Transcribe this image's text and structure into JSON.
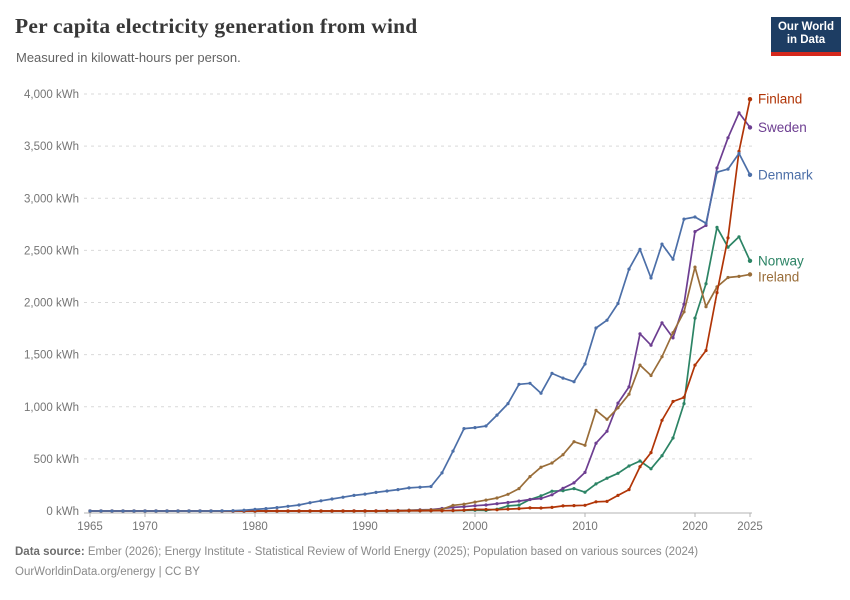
{
  "header": {
    "title": "Per capita electricity generation from wind",
    "subtitle": "Measured in kilowatt-hours per person."
  },
  "logo": {
    "line1": "Our World",
    "line2": "in Data",
    "bg_color": "#1d3d63",
    "accent_color": "#d5281c"
  },
  "chart_data": {
    "type": "line",
    "title": "Per capita electricity generation from wind",
    "unit": "kWh",
    "grid": "horizontal-dashed",
    "legend_position": "right-end-labels",
    "xlim": [
      1965,
      2025
    ],
    "ylim": [
      0,
      4000
    ],
    "x_ticks": [
      1965,
      1970,
      1980,
      1990,
      2000,
      2010,
      2020,
      2025
    ],
    "y_ticks": [
      {
        "value": 0,
        "label": "0 kWh"
      },
      {
        "value": 500,
        "label": "500 kWh"
      },
      {
        "value": 1000,
        "label": "1,000 kWh"
      },
      {
        "value": 1500,
        "label": "1,500 kWh"
      },
      {
        "value": 2000,
        "label": "2,000 kWh"
      },
      {
        "value": 2500,
        "label": "2,500 kWh"
      },
      {
        "value": 3000,
        "label": "3,000 kWh"
      },
      {
        "value": 3500,
        "label": "3,500 kWh"
      },
      {
        "value": 4000,
        "label": "4,000 kWh"
      }
    ],
    "x": [
      1965,
      1966,
      1967,
      1968,
      1969,
      1970,
      1971,
      1972,
      1973,
      1974,
      1975,
      1976,
      1977,
      1978,
      1979,
      1980,
      1981,
      1982,
      1983,
      1984,
      1985,
      1986,
      1987,
      1988,
      1989,
      1990,
      1991,
      1992,
      1993,
      1994,
      1995,
      1996,
      1997,
      1998,
      1999,
      2000,
      2001,
      2002,
      2003,
      2004,
      2005,
      2006,
      2007,
      2008,
      2009,
      2010,
      2011,
      2012,
      2013,
      2014,
      2015,
      2016,
      2017,
      2018,
      2019,
      2020,
      2021,
      2022,
      2023,
      2024,
      2025
    ],
    "series": [
      {
        "name": "Norway",
        "color": "#2C8465",
        "values": [
          0,
          0,
          0,
          0,
          0,
          0,
          0,
          0,
          0,
          0,
          0,
          0,
          0,
          0,
          0,
          0,
          0,
          0,
          0,
          0,
          0,
          0,
          0,
          0,
          0,
          0,
          0,
          0,
          1,
          2,
          2,
          2,
          3,
          4,
          6,
          7,
          6,
          17,
          49,
          57,
          110,
          145,
          190,
          195,
          215,
          180,
          260,
          315,
          362,
          432,
          480,
          405,
          530,
          700,
          1030,
          1850,
          2180,
          2720,
          2530,
          2630,
          2400
        ]
      },
      {
        "name": "Sweden",
        "color": "#6D3E91",
        "values": [
          0,
          0,
          0,
          0,
          0,
          0,
          0,
          0,
          0,
          0,
          0,
          0,
          0,
          0,
          0,
          0,
          0,
          0,
          0,
          0,
          0,
          0,
          0,
          0,
          1,
          1,
          2,
          3,
          5,
          8,
          11,
          13,
          24,
          35,
          41,
          51,
          58,
          70,
          82,
          95,
          110,
          120,
          155,
          218,
          270,
          370,
          650,
          765,
          1035,
          1190,
          1700,
          1590,
          1805,
          1660,
          1985,
          2680,
          2740,
          3290,
          3580,
          3820,
          3680
        ]
      },
      {
        "name": "Ireland",
        "color": "#996D39",
        "values": [
          0,
          0,
          0,
          0,
          0,
          0,
          0,
          0,
          0,
          0,
          0,
          0,
          0,
          0,
          0,
          0,
          0,
          0,
          0,
          0,
          0,
          0,
          0,
          0,
          0,
          0,
          0,
          3,
          4,
          6,
          8,
          11,
          16,
          55,
          65,
          85,
          105,
          125,
          160,
          215,
          330,
          420,
          460,
          540,
          665,
          630,
          965,
          880,
          990,
          1120,
          1400,
          1300,
          1480,
          1710,
          1910,
          2340,
          1960,
          2150,
          2240,
          2250,
          2270
        ]
      },
      {
        "name": "Finland",
        "color": "#B13507",
        "values": [
          0,
          0,
          0,
          0,
          0,
          0,
          0,
          0,
          0,
          0,
          0,
          0,
          0,
          0,
          0,
          0,
          0,
          0,
          0,
          0,
          0,
          0,
          0,
          0,
          0,
          0,
          0,
          1,
          1,
          2,
          2,
          3,
          3,
          5,
          9,
          15,
          14,
          12,
          18,
          23,
          30,
          29,
          35,
          49,
          52,
          55,
          88,
          92,
          150,
          205,
          425,
          560,
          870,
          1050,
          1090,
          1400,
          1540,
          2095,
          2620,
          3450,
          3950
        ]
      },
      {
        "name": "Denmark",
        "color": "#4C6FA8",
        "values": [
          0,
          0,
          0,
          0,
          0,
          0,
          0,
          0,
          0,
          0,
          0,
          0,
          1,
          3,
          8,
          15,
          23,
          33,
          45,
          58,
          80,
          98,
          115,
          132,
          150,
          162,
          178,
          192,
          205,
          222,
          228,
          235,
          365,
          575,
          790,
          800,
          815,
          920,
          1030,
          1215,
          1225,
          1130,
          1320,
          1275,
          1240,
          1410,
          1755,
          1830,
          1990,
          2320,
          2510,
          2235,
          2560,
          2415,
          2800,
          2820,
          2760,
          3250,
          3280,
          3430,
          3225
        ]
      }
    ]
  },
  "footer": {
    "source_label": "Data source:",
    "source_text": " Ember (2026); Energy Institute - Statistical Review of World Energy (2025); Population based on various sources (2024)",
    "link": "OurWorldinData.org/energy",
    "separator": " | ",
    "license": "CC BY"
  }
}
